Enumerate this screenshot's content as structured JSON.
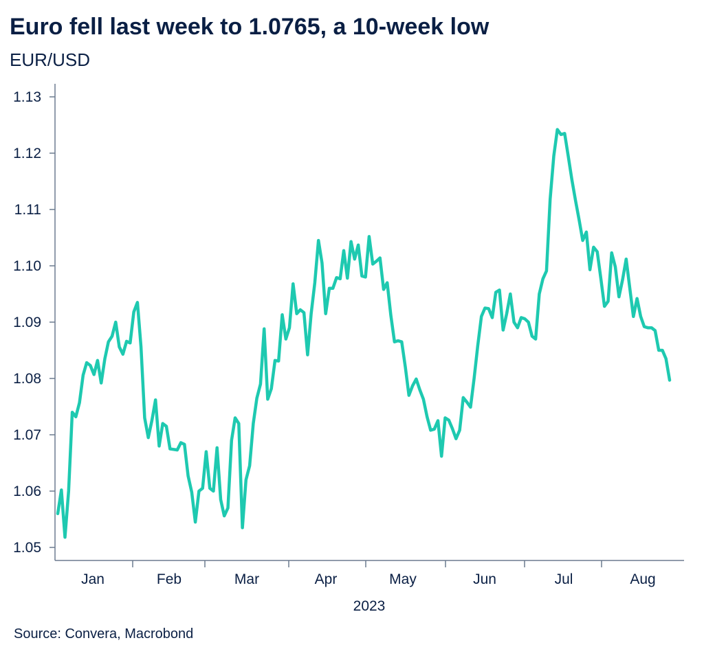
{
  "header": {
    "title": "Euro fell last week to 1.0765, a 10-week low",
    "subtitle": "EUR/USD"
  },
  "footer": {
    "source": "Source: Convera, Macrobond"
  },
  "colors": {
    "line": "#1ec9b0",
    "axis": "#6b7a8f",
    "text": "#0a1f44"
  },
  "chart_data": {
    "type": "line",
    "title": "Euro fell last week to 1.0765, a 10-week low",
    "ylabel": "EUR/USD",
    "xlabel": "2023",
    "ylim": [
      1.05,
      1.13
    ],
    "grid": false,
    "y_ticks": [
      "1.05",
      "1.06",
      "1.07",
      "1.08",
      "1.09",
      "1.10",
      "1.11",
      "1.12",
      "1.13"
    ],
    "x_ticks": [
      "Jan",
      "Feb",
      "Mar",
      "Apr",
      "May",
      "Jun",
      "Jul",
      "Aug"
    ],
    "series": [
      {
        "values": [
          1.056,
          1.0602,
          1.0518,
          1.06,
          1.074,
          1.0732,
          1.0757,
          1.0806,
          1.0828,
          1.0823,
          1.0807,
          1.0832,
          1.0792,
          1.0835,
          1.0865,
          1.0875,
          1.09,
          1.0856,
          1.0843,
          1.0866,
          1.0863,
          1.0918,
          1.0935,
          1.0856,
          1.073,
          1.0695,
          1.0725,
          1.0762,
          1.068,
          1.072,
          1.0715,
          1.0675,
          1.0674,
          1.0673,
          1.0686,
          1.0683,
          1.0627,
          1.0598,
          1.0545,
          1.06,
          1.0605,
          1.067,
          1.0605,
          1.06,
          1.0677,
          1.0585,
          1.0556,
          1.057,
          1.069,
          1.073,
          1.072,
          1.0535,
          1.062,
          1.0645,
          1.072,
          1.0765,
          1.079,
          1.0888,
          1.0763,
          1.0782,
          1.0832,
          1.0831,
          1.0913,
          1.087,
          1.089,
          1.0968,
          1.0915,
          1.0922,
          1.0917,
          1.0842,
          1.0915,
          1.097,
          1.1045,
          1.1005,
          1.0915,
          1.096,
          1.096,
          1.0979,
          1.0977,
          1.1027,
          1.0978,
          1.1043,
          1.1012,
          1.1037,
          1.0982,
          1.098,
          1.1052,
          1.1003,
          1.1008,
          1.1014,
          1.0958,
          1.097,
          1.0912,
          1.0865,
          1.0867,
          1.0865,
          1.082,
          1.077,
          1.0787,
          1.0799,
          1.078,
          1.0763,
          1.0732,
          1.0708,
          1.071,
          1.0725,
          1.0662,
          1.073,
          1.0726,
          1.0711,
          1.0693,
          1.0708,
          1.0766,
          1.0758,
          1.0749,
          1.08,
          1.0858,
          1.091,
          1.0925,
          1.0924,
          1.0908,
          1.0953,
          1.0957,
          1.0886,
          1.0915,
          1.095,
          1.09,
          1.089,
          1.0908,
          1.0906,
          1.09,
          1.0875,
          1.087,
          1.095,
          1.0977,
          1.0991,
          1.1118,
          1.1195,
          1.1242,
          1.1233,
          1.1235,
          1.1195,
          1.1153,
          1.1116,
          1.1082,
          1.1045,
          1.106,
          1.0993,
          1.1033,
          1.1025,
          1.0978,
          1.0928,
          1.0937,
          1.1023,
          1.0998,
          1.0945,
          1.0975,
          1.1012,
          1.096,
          1.091,
          1.0942,
          1.091,
          1.0892,
          1.089,
          1.089,
          1.0885,
          1.085,
          1.085,
          1.0835,
          1.0797
        ]
      }
    ]
  }
}
